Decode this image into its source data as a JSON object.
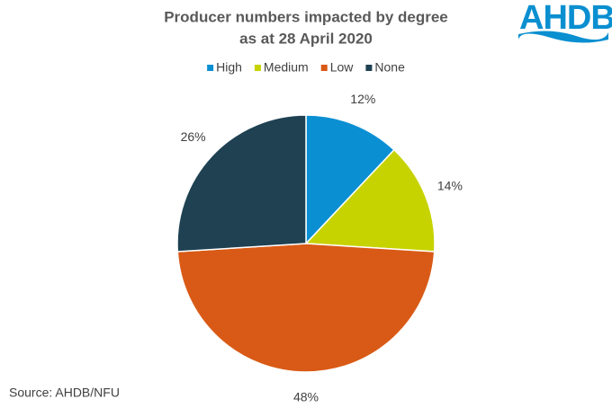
{
  "chart_data": {
    "type": "pie",
    "title": [
      "Producer numbers impacted by degree",
      "as at 28 April 2020"
    ],
    "categories": [
      "High",
      "Medium",
      "Low",
      "None"
    ],
    "values": [
      12,
      14,
      48,
      26
    ],
    "value_labels": [
      "12%",
      "14%",
      "48%",
      "26%"
    ],
    "colors": [
      "#0b8fd3",
      "#c7d300",
      "#d95a16",
      "#1f4152"
    ],
    "legend": "top",
    "source": "Source:  AHDB/NFU"
  },
  "logo": "AHDB"
}
